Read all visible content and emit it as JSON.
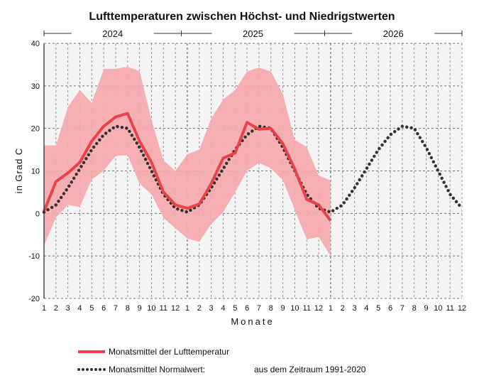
{
  "chart_data": {
    "type": "line",
    "title": "Lufttemperaturen zwischen Höchst- und Niedrigstwerten",
    "years": [
      "2024",
      "2025",
      "2026"
    ],
    "xlabel": "Monate",
    "ylabel": "in Grad C",
    "ylim": [
      -20,
      40
    ],
    "yticks": [
      -20,
      -10,
      0,
      10,
      20,
      30,
      40
    ],
    "x_tick_labels": [
      "1",
      "2",
      "3",
      "4",
      "5",
      "6",
      "7",
      "8",
      "9",
      "10",
      "11",
      "12",
      "1",
      "2",
      "3",
      "4",
      "5",
      "6",
      "7",
      "8",
      "9",
      "10",
      "11",
      "12",
      "1",
      "2",
      "3",
      "4",
      "5",
      "6",
      "7",
      "8",
      "9",
      "10",
      "11",
      "12"
    ],
    "grid": true,
    "colors": {
      "mean": "#e8434a",
      "band": "#f6a9ac",
      "normal": "#333333",
      "plot_bg": "#f4f4f4"
    },
    "series": [
      {
        "name": "Monatsmittel der Lufttemperatur",
        "style": "solid",
        "values": [
          0.5,
          7.5,
          9.5,
          12,
          17,
          20.5,
          22.7,
          23.5,
          17,
          12,
          5,
          2,
          1.2,
          2.2,
          7,
          13,
          14.2,
          21.4,
          19.8,
          20,
          16.4,
          10.4,
          3.3,
          2,
          -1.7
        ]
      },
      {
        "name": "Monatsmittel Normalwert:",
        "style": "dotted",
        "values": [
          0.3,
          2,
          6,
          10.5,
          15,
          18.5,
          20.5,
          20,
          15.5,
          10,
          4.5,
          1.2,
          0.3,
          2,
          6,
          10.5,
          15,
          18.5,
          20.5,
          20,
          15.5,
          10,
          4.5,
          1.2,
          0.3,
          2,
          6,
          10.5,
          15,
          18.5,
          20.5,
          20,
          15.5,
          10,
          4.5,
          1.2
        ]
      }
    ],
    "band": {
      "upper": [
        16,
        16,
        25,
        29,
        26,
        34,
        34,
        34.5,
        33.5,
        22,
        12.5,
        10,
        13.9,
        15,
        22.3,
        26.8,
        29,
        33.4,
        34.3,
        33.4,
        28,
        17.3,
        15.6,
        8.9,
        7.8
      ],
      "lower": [
        -7.5,
        -1,
        2,
        1.5,
        8,
        10,
        13.5,
        13.7,
        7,
        4.5,
        -1,
        -3.5,
        -5.9,
        -6.7,
        -2.5,
        0.3,
        5,
        10,
        11.9,
        10.6,
        7.8,
        0.8,
        -6.1,
        -5.5,
        -10
      ]
    },
    "legend": {
      "mean": "Monatsmittel der Lufttemperatur",
      "normal": "Monatsmittel Normalwert:",
      "normal_note": "aus dem Zeitraum 1991-2020",
      "placement": "bottom-left"
    }
  }
}
